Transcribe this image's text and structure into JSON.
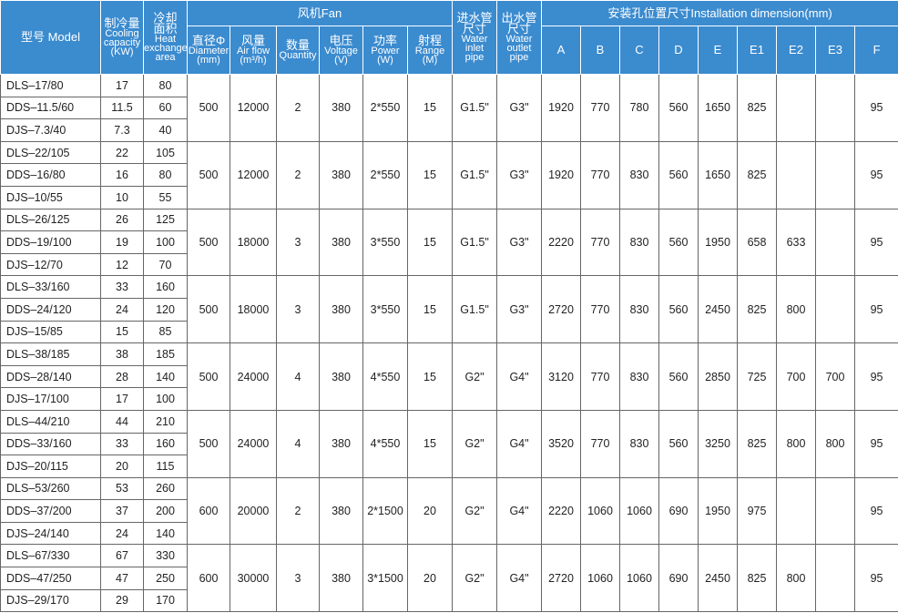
{
  "header": {
    "left": [
      {
        "lines": [
          "型号 Model"
        ]
      },
      {
        "lines": [
          "制冷量",
          "Cooling",
          "capacity",
          "(KW)"
        ]
      },
      {
        "lines": [
          "冷却",
          "面积",
          "Heat",
          "exchange",
          "area"
        ]
      }
    ],
    "fan_label": "风机Fan",
    "fan": [
      {
        "lines": [
          "直径Φ",
          "Diameter",
          "(mm)"
        ]
      },
      {
        "lines": [
          "风量",
          "Air flow",
          "(m³/h)"
        ]
      },
      {
        "lines": [
          "数量",
          "Quantity"
        ]
      },
      {
        "lines": [
          "电压",
          "Voltage",
          "(V)"
        ]
      },
      {
        "lines": [
          "功率",
          "Power",
          "(W)"
        ]
      },
      {
        "lines": [
          "射程",
          "Range",
          "(M)"
        ]
      }
    ],
    "pipes": [
      {
        "lines": [
          "进水管",
          "尺寸",
          "Water",
          "inlet",
          "pipe"
        ]
      },
      {
        "lines": [
          "出水管",
          "尺寸",
          "Water",
          "outlet",
          "pipe"
        ]
      }
    ],
    "install_label": "安装孔位置尺寸Installation dimension(mm)",
    "install": [
      "A",
      "B",
      "C",
      "D",
      "E",
      "E1",
      "E2",
      "E3",
      "F"
    ]
  },
  "rows": [
    {
      "models": [
        "DLS–17/80",
        "DDS–11.5/60",
        "DJS–7.3/40"
      ],
      "cooling": [
        17,
        11.5,
        7.3
      ],
      "area": [
        80,
        60,
        40
      ],
      "shared": [
        500,
        12000,
        2,
        380,
        "2*550",
        15,
        "G1.5\"",
        "G3\"",
        1920,
        770,
        780,
        560,
        1650,
        825,
        null,
        null,
        95
      ]
    },
    {
      "models": [
        "DLS–22/105",
        "DDS–16/80",
        "DJS–10/55"
      ],
      "cooling": [
        22,
        16,
        10
      ],
      "area": [
        105,
        80,
        55
      ],
      "shared": [
        500,
        12000,
        2,
        380,
        "2*550",
        15,
        "G1.5\"",
        "G3\"",
        1920,
        770,
        830,
        560,
        1650,
        825,
        null,
        null,
        95
      ]
    },
    {
      "models": [
        "DLS–26/125",
        "DDS–19/100",
        "DJS–12/70"
      ],
      "cooling": [
        26,
        19,
        12
      ],
      "area": [
        125,
        100,
        70
      ],
      "shared": [
        500,
        18000,
        3,
        380,
        "3*550",
        15,
        "G1.5\"",
        "G3\"",
        2220,
        770,
        830,
        560,
        1950,
        658,
        633,
        null,
        95
      ]
    },
    {
      "models": [
        "DLS–33/160",
        "DDS–24/120",
        "DJS–15/85"
      ],
      "cooling": [
        33,
        24,
        15
      ],
      "area": [
        160,
        120,
        85
      ],
      "shared": [
        500,
        18000,
        3,
        380,
        "3*550",
        15,
        "G1.5\"",
        "G3\"",
        2720,
        770,
        830,
        560,
        2450,
        825,
        800,
        null,
        95
      ]
    },
    {
      "models": [
        "DLS–38/185",
        "DDS–28/140",
        "DJS–17/100"
      ],
      "cooling": [
        38,
        28,
        17
      ],
      "area": [
        185,
        140,
        100
      ],
      "shared": [
        500,
        24000,
        4,
        380,
        "4*550",
        15,
        "G2\"",
        "G4\"",
        3120,
        770,
        830,
        560,
        2850,
        725,
        700,
        700,
        95
      ]
    },
    {
      "models": [
        "DLS–44/210",
        "DDS–33/160",
        "DJS–20/115"
      ],
      "cooling": [
        44,
        33,
        20
      ],
      "area": [
        210,
        160,
        115
      ],
      "shared": [
        500,
        24000,
        4,
        380,
        "4*550",
        15,
        "G2\"",
        "G4\"",
        3520,
        770,
        830,
        560,
        3250,
        825,
        800,
        800,
        95
      ]
    },
    {
      "models": [
        "DLS–53/260",
        "DDS–37/200",
        "DJS–24/140"
      ],
      "cooling": [
        53,
        37,
        24
      ],
      "area": [
        260,
        200,
        140
      ],
      "shared": [
        600,
        20000,
        2,
        380,
        "2*1500",
        20,
        "G2\"",
        "G4\"",
        2220,
        1060,
        1060,
        690,
        1950,
        975,
        null,
        null,
        95
      ]
    },
    {
      "models": [
        "DLS–67/330",
        "DDS–47/250",
        "DJS–29/170"
      ],
      "cooling": [
        67,
        47,
        29
      ],
      "area": [
        330,
        250,
        170
      ],
      "shared": [
        600,
        30000,
        3,
        380,
        "3*1500",
        20,
        "G2\"",
        "G4\"",
        2720,
        1060,
        1060,
        690,
        2450,
        825,
        800,
        null,
        95
      ]
    }
  ]
}
